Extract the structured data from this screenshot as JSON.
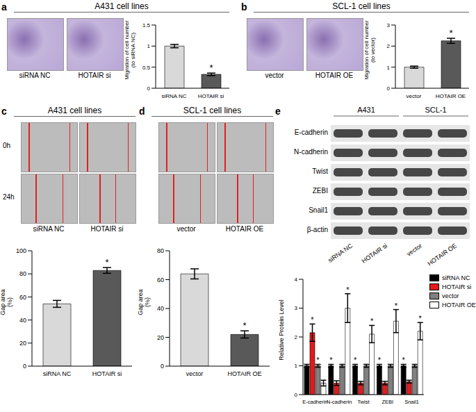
{
  "chart_data": [
    {
      "panel": "a",
      "type": "bar",
      "title": "A431 cell lines",
      "categories": [
        "siRNA NC",
        "HOTAIR si"
      ],
      "values": [
        1.0,
        0.33
      ],
      "errors": [
        0.04,
        0.03
      ],
      "colors": [
        "#d9d9d9",
        "#595959"
      ],
      "y_label": "Migration of cell number (to siRNA NC)",
      "ylim": [
        0,
        1.5
      ],
      "yticks": [
        0,
        0.5,
        1,
        1.5
      ],
      "annotations": [
        {
          "text": "*",
          "category": "HOTAIR si"
        }
      ]
    },
    {
      "panel": "b",
      "type": "bar",
      "title": "SCL-1 cell lines",
      "categories": [
        "vector",
        "HOTAIR OE"
      ],
      "values": [
        1.0,
        2.25
      ],
      "errors": [
        0.05,
        0.12
      ],
      "colors": [
        "#d9d9d9",
        "#595959"
      ],
      "y_label": "Migration of cell number (to vector)",
      "ylim": [
        0,
        3
      ],
      "yticks": [
        0,
        1,
        2,
        3
      ],
      "annotations": [
        {
          "text": "*",
          "category": "HOTAIR OE"
        }
      ]
    },
    {
      "panel": "c",
      "type": "bar",
      "title": "A431 cell lines",
      "image_rows": [
        "0h",
        "24h"
      ],
      "categories": [
        "siRNA NC",
        "HOTAIR si"
      ],
      "values": [
        54,
        83
      ],
      "errors": [
        3,
        2.5
      ],
      "colors": [
        "#d9d9d9",
        "#595959"
      ],
      "y_label": "Gap area (%)",
      "ylim": [
        0,
        100
      ],
      "yticks": [
        0,
        20,
        40,
        60,
        80,
        100
      ],
      "annotations": [
        {
          "text": "*",
          "category": "HOTAIR si"
        }
      ]
    },
    {
      "panel": "d",
      "type": "bar",
      "title": "SCL-1 cell lines",
      "categories": [
        "vector",
        "HOTAIR OE"
      ],
      "values": [
        64,
        22
      ],
      "errors": [
        3.5,
        2.5
      ],
      "colors": [
        "#d9d9d9",
        "#595959"
      ],
      "y_label": "Gap area (%)",
      "ylim": [
        0,
        80
      ],
      "yticks": [
        0,
        20,
        40,
        60,
        80
      ],
      "annotations": [
        {
          "text": "*",
          "category": "HOTAIR OE"
        }
      ]
    },
    {
      "panel": "e",
      "type": "bar",
      "cell_lines": [
        "A431",
        "SCL-1"
      ],
      "blot_rows": [
        "E-cadherin",
        "N-cadherin",
        "Twist",
        "ZEBI",
        "Snail1",
        "β-actin"
      ],
      "categories": [
        "E-cadherin",
        "N-cadherin",
        "Twist",
        "ZEBI",
        "Snail1"
      ],
      "series": [
        {
          "name": "siRNA NC",
          "color": "#000000",
          "values": [
            1,
            1,
            1,
            1,
            1
          ],
          "errors": [
            0.05,
            0.05,
            0.05,
            0.05,
            0.05
          ]
        },
        {
          "name": "HOTAIR si",
          "color": "#e31a1c",
          "values": [
            2.15,
            0.4,
            0.4,
            0.4,
            0.45
          ],
          "errors": [
            0.3,
            0.08,
            0.06,
            0.06,
            0.05
          ]
        },
        {
          "name": "vector",
          "color": "#808080",
          "values": [
            1,
            1,
            1,
            1,
            1
          ],
          "errors": [
            0.05,
            0.05,
            0.05,
            0.05,
            0.05
          ]
        },
        {
          "name": "HOTAIR OE",
          "color": "#ffffff",
          "values": [
            0.4,
            3.0,
            2.1,
            2.55,
            2.2
          ],
          "errors": [
            0.1,
            0.5,
            0.3,
            0.4,
            0.3
          ]
        }
      ],
      "y_label": "Relative Protein Level",
      "ylim": [
        0,
        4
      ],
      "yticks": [
        0,
        1,
        2,
        3,
        4
      ],
      "legend": "upper right",
      "annotations": [
        {
          "text": "*",
          "category": "E-cadherin",
          "series": [
            "siRNA NC",
            "HOTAIR si"
          ]
        },
        {
          "text": "*",
          "category": "E-cadherin",
          "series": [
            "vector",
            "HOTAIR OE"
          ]
        },
        {
          "text": "*",
          "category": "N-cadherin",
          "series": [
            "siRNA NC",
            "HOTAIR si"
          ]
        },
        {
          "text": "*",
          "category": "N-cadherin",
          "series": [
            "vector",
            "HOTAIR OE"
          ]
        },
        {
          "text": "*",
          "category": "Twist",
          "series": [
            "siRNA NC",
            "HOTAIR si"
          ]
        },
        {
          "text": "*",
          "category": "Twist",
          "series": [
            "vector",
            "HOTAIR OE"
          ]
        },
        {
          "text": "*",
          "category": "ZEBI",
          "series": [
            "siRNA NC",
            "HOTAIR si"
          ]
        },
        {
          "text": "*",
          "category": "ZEBI",
          "series": [
            "vector",
            "HOTAIR OE"
          ]
        },
        {
          "text": "*",
          "category": "Snail1",
          "series": [
            "siRNA NC",
            "HOTAIR si"
          ]
        },
        {
          "text": "*",
          "category": "Snail1",
          "series": [
            "vector",
            "HOTAIR OE"
          ]
        }
      ]
    }
  ]
}
